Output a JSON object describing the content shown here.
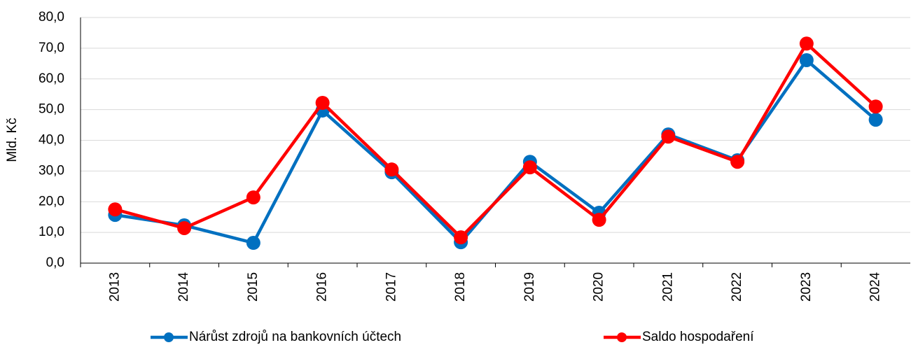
{
  "chart_data": {
    "type": "line",
    "y_label": "Mld. Kč",
    "categories": [
      "2013",
      "2014",
      "2015",
      "2016",
      "2017",
      "2018",
      "2019",
      "2020",
      "2021",
      "2022",
      "2023",
      "2024"
    ],
    "series": [
      {
        "name": "Nárůst zdrojů na bankovních účtech",
        "color": "#0070c0",
        "values": [
          15.7,
          12.3,
          6.6,
          49.7,
          29.6,
          6.8,
          33.0,
          16.4,
          41.9,
          33.5,
          66.1,
          46.7
        ]
      },
      {
        "name": "Saldo hospodaření",
        "color": "#ff0000",
        "values": [
          17.5,
          11.4,
          21.4,
          52.2,
          30.5,
          8.4,
          31.2,
          14.1,
          41.2,
          33.0,
          71.5,
          51.0
        ]
      }
    ],
    "ylim": [
      0,
      80
    ],
    "yticks": [
      {
        "value": 0,
        "label": "0,0"
      },
      {
        "value": 10,
        "label": "10,0"
      },
      {
        "value": 20,
        "label": "20,0"
      },
      {
        "value": 30,
        "label": "30,0"
      },
      {
        "value": 40,
        "label": "40,0"
      },
      {
        "value": 50,
        "label": "50,0"
      },
      {
        "value": 60,
        "label": "60,0"
      },
      {
        "value": 70,
        "label": "70,0"
      },
      {
        "value": 80,
        "label": "80,0"
      }
    ],
    "grid": true
  }
}
